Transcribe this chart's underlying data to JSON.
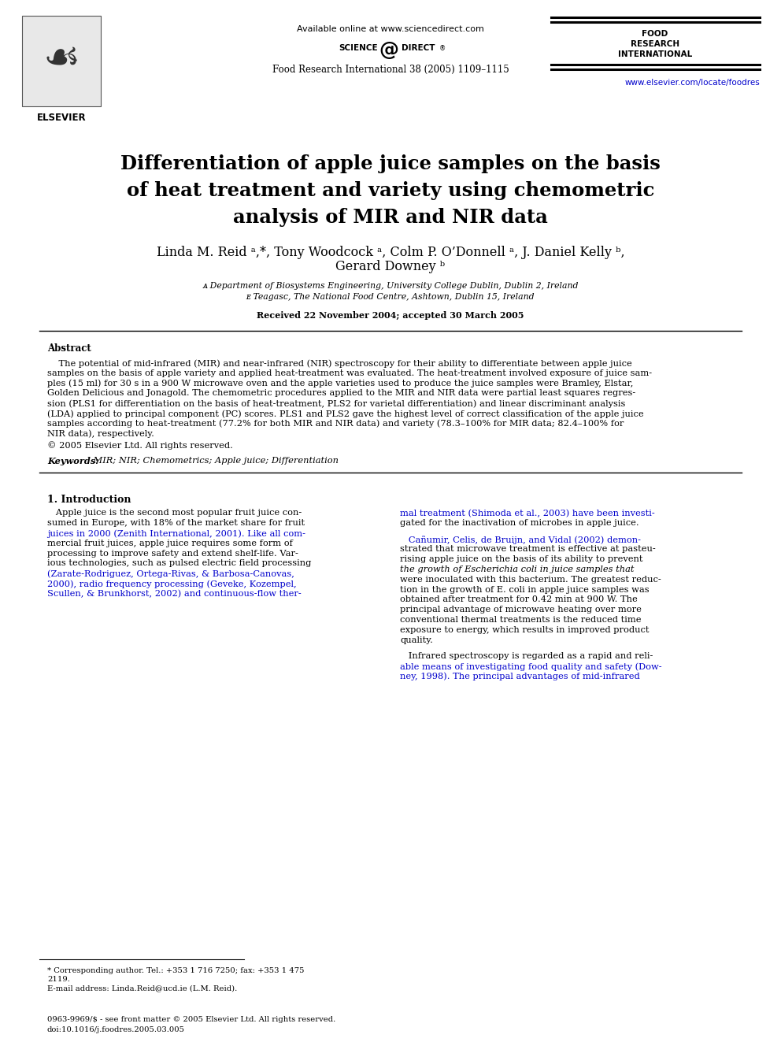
{
  "page_bg": "#ffffff",
  "header": {
    "available_online": "Available online at www.sciencedirect.com",
    "journal_lines": [
      "FOOD",
      "RESEARCH",
      "INTERNATIONAL"
    ],
    "journal_ref": "Food Research International 38 (2005) 1109–1115",
    "website": "www.elsevier.com/locate/foodres"
  },
  "title_line1": "Differentiation of apple juice samples on the basis",
  "title_line2": "of heat treatment and variety using chemometric",
  "title_line3": "analysis of MIR and NIR data",
  "author_line1": "Linda M. Reid ᵃ,*, Tony Woodcock ᵃ, Colm P. O’Donnell ᵃ, J. Daniel Kelly ᵇ,",
  "author_line2": "Gerard Downey ᵇ",
  "affil_a": "ᴀ Department of Biosystems Engineering, University College Dublin, Dublin 2, Ireland",
  "affil_b": "ᴇ Teagasc, The National Food Centre, Ashtown, Dublin 15, Ireland",
  "received": "Received 22 November 2004; accepted 30 March 2005",
  "abstract_title": "Abstract",
  "abstract_indent": "    The potential of mid-infrared (MIR) and near-infrared (NIR) spectroscopy for their ability to differentiate between apple juice",
  "abstract_lines": [
    "samples on the basis of apple variety and applied heat-treatment was evaluated. The heat-treatment involved exposure of juice sam-",
    "ples (15 ml) for 30 s in a 900 W microwave oven and the apple varieties used to produce the juice samples were Bramley, Elstar,",
    "Golden Delicious and Jonagold. The chemometric procedures applied to the MIR and NIR data were partial least squares regres-",
    "sion (PLS1 for differentiation on the basis of heat-treatment, PLS2 for varietal differentiation) and linear discriminant analysis",
    "(LDA) applied to principal component (PC) scores. PLS1 and PLS2 gave the highest level of correct classification of the apple juice",
    "samples according to heat-treatment (77.2% for both MIR and NIR data) and variety (78.3–100% for MIR data; 82.4–100% for",
    "NIR data), respectively."
  ],
  "copyright": "© 2005 Elsevier Ltd. All rights reserved.",
  "keywords_label": "Keywords:",
  "keywords_text": " MIR; NIR; Chemometrics; Apple juice; Differentiation",
  "section1_title": "1. Introduction",
  "col1_lines": [
    "   Apple juice is the second most popular fruit juice con-",
    "sumed in Europe, with 18% of the market share for fruit",
    "juices in 2000 (Zenith International, 2001). Like all com-",
    "mercial fruit juices, apple juice requires some form of",
    "processing to improve safety and extend shelf-life. Var-",
    "ious technologies, such as pulsed electric field processing",
    "(Zarate-Rodriguez, Ortega-Rivas, & Barbosa-Canovas,",
    "2000), radio frequency processing (Geveke, Kozempel,",
    "Scullen, & Brunkhorst, 2002) and continuous-flow ther-"
  ],
  "col1_link_lines": [
    2,
    6,
    7,
    8
  ],
  "col2_lines": [
    "mal treatment (Shimoda et al., 2003) have been investi-",
    "gated for the inactivation of microbes in apple juice.",
    "",
    "   Cañumir, Celis, de Bruijn, and Vidal (2002) demon-",
    "strated that microwave treatment is effective at pasteu-",
    "rising apple juice on the basis of its ability to prevent",
    "the growth of Escherichia coli in juice samples that",
    "were inoculated with this bacterium. The greatest reduc-",
    "tion in the growth of E. coli in apple juice samples was",
    "obtained after treatment for 0.42 min at 900 W. The",
    "principal advantage of microwave heating over more",
    "conventional thermal treatments is the reduced time",
    "exposure to energy, which results in improved product",
    "quality.",
    "",
    "   Infrared spectroscopy is regarded as a rapid and reli-",
    "able means of investigating food quality and safety (Dow-",
    "ney, 1998). The principal advantages of mid-infrared"
  ],
  "col2_link_lines": [
    0,
    3,
    16,
    17
  ],
  "col2_italic_lines": [
    6
  ],
  "footnote_line": "* Corresponding author. Tel.: +353 1 716 7250; fax: +353 1 475",
  "footnote_line2": "2119.",
  "footnote_email": "E-mail address: Linda.Reid@ucd.ie (L.M. Reid).",
  "footnote_issn": "0963-9969/$ - see front matter © 2005 Elsevier Ltd. All rights reserved.",
  "footnote_doi": "doi:10.1016/j.foodres.2005.03.005",
  "link_color": "#0000cc",
  "text_color": "#000000"
}
